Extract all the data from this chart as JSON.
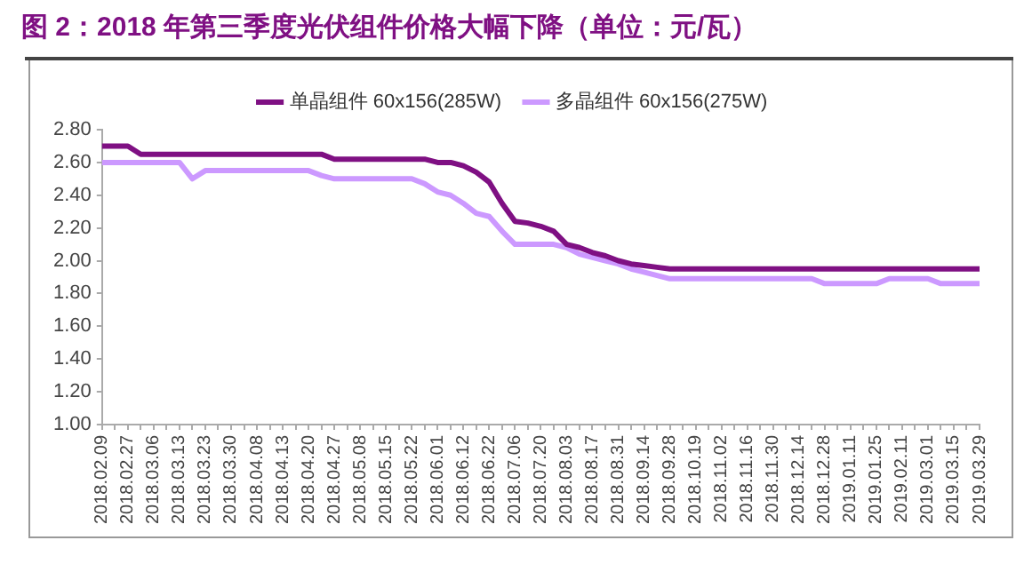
{
  "chart_data": {
    "type": "line",
    "title": "图 2：2018 年第三季度光伏组件价格大幅下降（单位：元/瓦）",
    "categories": [
      "2018.02.09",
      null,
      "2018.02.27",
      null,
      "2018.03.06",
      null,
      "2018.03.13",
      null,
      "2018.03.23",
      null,
      "2018.03.30",
      null,
      "2018.04.08",
      null,
      "2018.04.13",
      null,
      "2018.04.20",
      null,
      "2018.04.27",
      null,
      "2018.05.08",
      null,
      "2018.05.15",
      null,
      "2018.05.22",
      null,
      "2018.06.01",
      null,
      "2018.06.12",
      null,
      "2018.06.22",
      null,
      "2018.07.06",
      null,
      "2018.07.20",
      null,
      "2018.08.03",
      null,
      "2018.08.17",
      null,
      "2018.08.31",
      null,
      "2018.09.14",
      null,
      "2018.09.28",
      null,
      "2018.10.19",
      null,
      "2018.11.02",
      null,
      "2018.11.16",
      null,
      "2018.11.30",
      null,
      "2018.12.14",
      null,
      "2018.12.28",
      null,
      "2019.01.11",
      null,
      "2019.01.25",
      null,
      "2019.02.11",
      null,
      "2019.03.01",
      null,
      "2019.03.15",
      null,
      "2019.03.29"
    ],
    "series": [
      {
        "name": "单晶组件 60x156(285W)",
        "color": "#7f1083",
        "values": [
          2.7,
          2.7,
          2.7,
          2.65,
          2.65,
          2.65,
          2.65,
          2.65,
          2.65,
          2.65,
          2.65,
          2.65,
          2.65,
          2.65,
          2.65,
          2.65,
          2.65,
          2.65,
          2.62,
          2.62,
          2.62,
          2.62,
          2.62,
          2.62,
          2.62,
          2.62,
          2.6,
          2.6,
          2.58,
          2.54,
          2.48,
          2.35,
          2.24,
          2.23,
          2.21,
          2.18,
          2.1,
          2.08,
          2.05,
          2.03,
          2.0,
          1.98,
          1.97,
          1.96,
          1.95,
          1.95,
          1.95,
          1.95,
          1.95,
          1.95,
          1.95,
          1.95,
          1.95,
          1.95,
          1.95,
          1.95,
          1.95,
          1.95,
          1.95,
          1.95,
          1.95,
          1.95,
          1.95,
          1.95,
          1.95,
          1.95,
          1.95,
          1.95,
          1.95
        ]
      },
      {
        "name": "多晶组件 60x156(275W)",
        "color": "#cc99ff",
        "values": [
          2.6,
          2.6,
          2.6,
          2.6,
          2.6,
          2.6,
          2.6,
          2.5,
          2.55,
          2.55,
          2.55,
          2.55,
          2.55,
          2.55,
          2.55,
          2.55,
          2.55,
          2.52,
          2.5,
          2.5,
          2.5,
          2.5,
          2.5,
          2.5,
          2.5,
          2.47,
          2.42,
          2.4,
          2.35,
          2.29,
          2.27,
          2.18,
          2.1,
          2.1,
          2.1,
          2.1,
          2.08,
          2.04,
          2.02,
          2.0,
          1.98,
          1.95,
          1.93,
          1.91,
          1.89,
          1.89,
          1.89,
          1.89,
          1.89,
          1.89,
          1.89,
          1.89,
          1.89,
          1.89,
          1.89,
          1.89,
          1.86,
          1.86,
          1.86,
          1.86,
          1.86,
          1.89,
          1.89,
          1.89,
          1.89,
          1.86,
          1.86,
          1.86,
          1.86
        ]
      }
    ],
    "ylim": [
      1.0,
      2.8
    ],
    "yticks": [
      {
        "value": 1.0,
        "label": "1.00"
      },
      {
        "value": 1.2,
        "label": "1.20"
      },
      {
        "value": 1.4,
        "label": "1.40"
      },
      {
        "value": 1.6,
        "label": "1.60"
      },
      {
        "value": 1.8,
        "label": "1.80"
      },
      {
        "value": 2.0,
        "label": "2.00"
      },
      {
        "value": 2.2,
        "label": "2.20"
      },
      {
        "value": 2.4,
        "label": "2.40"
      },
      {
        "value": 2.6,
        "label": "2.60"
      },
      {
        "value": 2.8,
        "label": "2.80"
      }
    ],
    "grid": false,
    "legend": "top",
    "marker": "none",
    "line_style": "solid"
  }
}
